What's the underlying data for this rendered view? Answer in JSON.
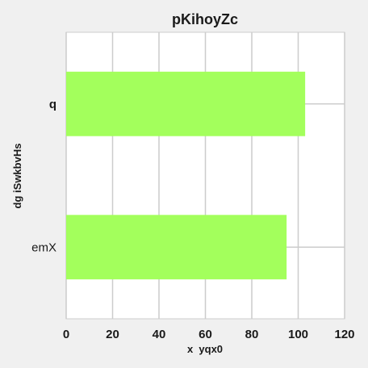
{
  "chart_data": {
    "type": "bar",
    "orientation": "horizontal",
    "title": "pKihoyZc",
    "xlabel": "x  yqx0",
    "ylabel": "dg iSwkbvHs",
    "categories": [
      "q",
      "emX"
    ],
    "values": [
      103,
      95
    ],
    "xlim": [
      0,
      120
    ],
    "xticks": [
      0,
      20,
      40,
      60,
      80,
      100,
      120
    ],
    "xtick_labels": [
      "0",
      "20",
      "40",
      "60",
      "80",
      "100",
      "120"
    ],
    "grid": true,
    "legend": "none",
    "colors": {
      "bar": "#a3ff5c",
      "background": "#f0f0f0",
      "plot_background": "#ffffff",
      "grid": "#cccccc",
      "text": "#1a1a1a"
    }
  }
}
